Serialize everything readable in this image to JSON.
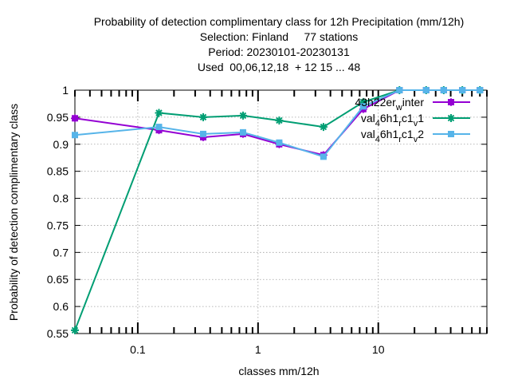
{
  "chart_data": {
    "type": "line",
    "title_lines": [
      "Probability of detection complimentary class  for 12h Precipitation (mm/12h)",
      "Selection: Finland     77 stations",
      "Period: 20230101-20230131",
      "Used  00,06,12,18  + 12 15 ... 48"
    ],
    "xlabel": "classes mm/12h",
    "ylabel": "Probability of detection complimentary class",
    "x_scale": "log",
    "xlim": [
      0.03,
      80
    ],
    "ylim": [
      0.55,
      1.0
    ],
    "x_tick_labels": [
      {
        "value": 0.1,
        "label": "0.1"
      },
      {
        "value": 1,
        "label": "1"
      },
      {
        "value": 10,
        "label": "10"
      }
    ],
    "y_tick_labels": [
      {
        "value": 0.55,
        "label": "0.55"
      },
      {
        "value": 0.6,
        "label": "0.6"
      },
      {
        "value": 0.65,
        "label": "0.65"
      },
      {
        "value": 0.7,
        "label": "0.7"
      },
      {
        "value": 0.75,
        "label": "0.75"
      },
      {
        "value": 0.8,
        "label": "0.8"
      },
      {
        "value": 0.85,
        "label": "0.85"
      },
      {
        "value": 0.9,
        "label": "0.9"
      },
      {
        "value": 0.95,
        "label": "0.95"
      },
      {
        "value": 1,
        "label": "1"
      }
    ],
    "grid": true,
    "legend_position": "top-right",
    "legend_entries": [
      {
        "main": "43h22",
        "sub": "er",
        "subscript": "w",
        "tail": "inter"
      },
      {
        "main": "val",
        "sub": "4",
        "mid": "6h1",
        "sub2": "r",
        "mid2": "c1",
        "sub3": "v",
        "tail": "1"
      },
      {
        "main": "val",
        "sub": "4",
        "mid": "6h1",
        "sub2": "r",
        "mid2": "c1",
        "sub3": "v",
        "tail": "2"
      }
    ],
    "series": [
      {
        "key": "winter",
        "color": "#9400d3",
        "marker": "plus-square",
        "points": [
          [
            0.03,
            0.948
          ],
          [
            0.15,
            0.926
          ],
          [
            0.35,
            0.913
          ],
          [
            0.75,
            0.919
          ],
          [
            1.5,
            0.9
          ],
          [
            3.5,
            0.88
          ],
          [
            7.5,
            0.965
          ],
          [
            15,
            1.0
          ],
          [
            25,
            1.0
          ],
          [
            35,
            1.0
          ],
          [
            50,
            1.0
          ],
          [
            70,
            1.0
          ]
        ]
      },
      {
        "key": "v1",
        "color": "#009e73",
        "marker": "star",
        "points": [
          [
            0.03,
            0.556
          ],
          [
            0.15,
            0.958
          ],
          [
            0.35,
            0.95
          ],
          [
            0.75,
            0.953
          ],
          [
            1.5,
            0.944
          ],
          [
            3.5,
            0.932
          ],
          [
            7.5,
            0.978
          ],
          [
            15,
            1.0
          ],
          [
            25,
            1.0
          ],
          [
            35,
            1.0
          ],
          [
            50,
            1.0
          ],
          [
            70,
            1.0
          ]
        ]
      },
      {
        "key": "v2",
        "color": "#56b4e9",
        "marker": "filled-square",
        "points": [
          [
            0.03,
            0.917
          ],
          [
            0.15,
            0.932
          ],
          [
            0.35,
            0.919
          ],
          [
            0.75,
            0.922
          ],
          [
            1.5,
            0.903
          ],
          [
            3.5,
            0.877
          ],
          [
            7.5,
            0.97
          ],
          [
            15,
            1.0
          ],
          [
            25,
            1.0
          ],
          [
            35,
            1.0
          ],
          [
            50,
            1.0
          ],
          [
            70,
            1.0
          ]
        ]
      }
    ]
  }
}
